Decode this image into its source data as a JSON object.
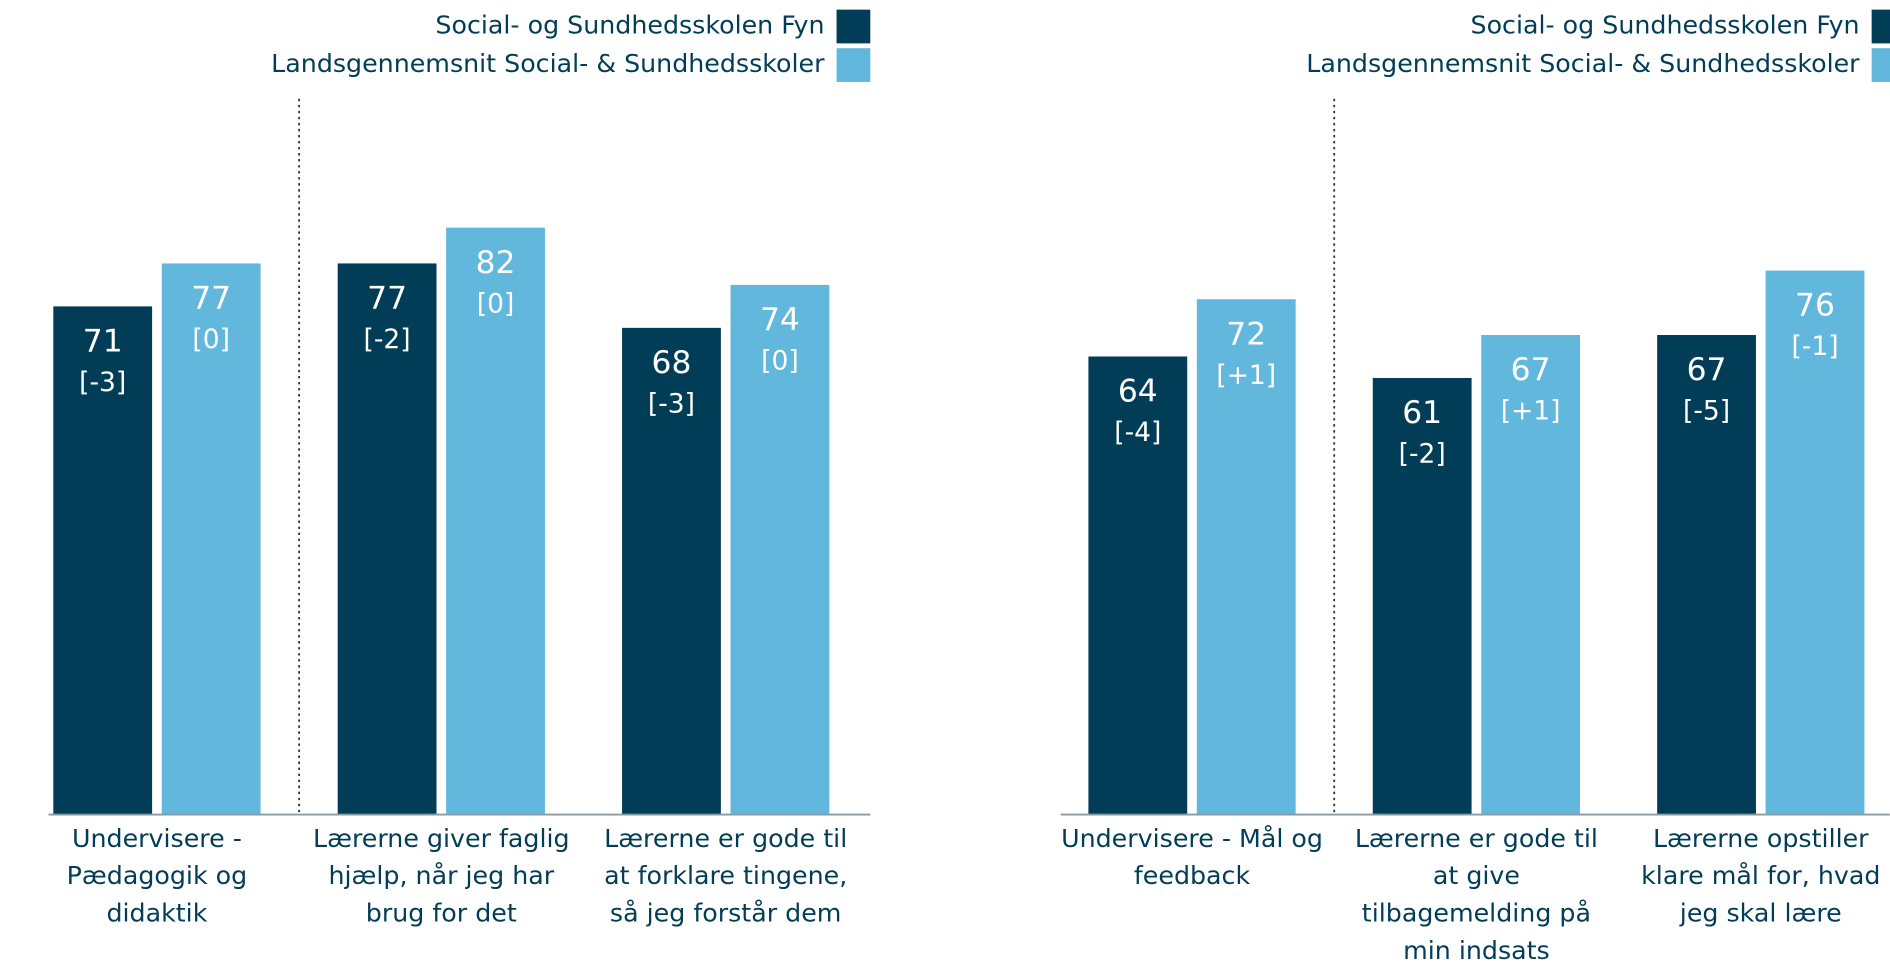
{
  "chart_data": [
    {
      "type": "bar",
      "ylim": [
        0,
        100
      ],
      "categories": [
        [
          "Undervisere -",
          "Pædagogik og",
          "didaktik"
        ],
        [
          "Lærerne giver faglig",
          "hjælp, når jeg har",
          "brug for det"
        ],
        [
          "Lærerne er gode til",
          "at forklare tingene,",
          "så jeg forstår dem"
        ]
      ],
      "series": [
        {
          "name": "Social- og Sundhedsskolen Fyn",
          "color": "#023d57",
          "values": [
            71,
            77,
            68
          ],
          "delta_labels": [
            "[-3]",
            "[-2]",
            "[-3]"
          ]
        },
        {
          "name": "Landsgennemsnit Social- & Sundhedsskoler",
          "color": "#62b7dc",
          "values": [
            77,
            82,
            74
          ],
          "delta_labels": [
            "[0]",
            "[0]",
            "[0]"
          ]
        }
      ]
    },
    {
      "type": "bar",
      "ylim": [
        0,
        100
      ],
      "categories": [
        [
          "Undervisere - Mål og",
          "feedback"
        ],
        [
          "Lærerne er gode til",
          "at give",
          "tilbagemelding på",
          "min indsats"
        ],
        [
          "Lærerne opstiller",
          "klare mål for, hvad",
          "jeg skal lære"
        ]
      ],
      "series": [
        {
          "name": "Social- og Sundhedsskolen Fyn",
          "color": "#023d57",
          "values": [
            64,
            61,
            67
          ],
          "delta_labels": [
            "[-4]",
            "[-2]",
            "[-5]"
          ]
        },
        {
          "name": "Landsgennemsnit Social- & Sundhedsskoler",
          "color": "#62b7dc",
          "values": [
            72,
            67,
            76
          ],
          "delta_labels": [
            "[+1]",
            "[+1]",
            "[-1]"
          ]
        }
      ]
    }
  ]
}
